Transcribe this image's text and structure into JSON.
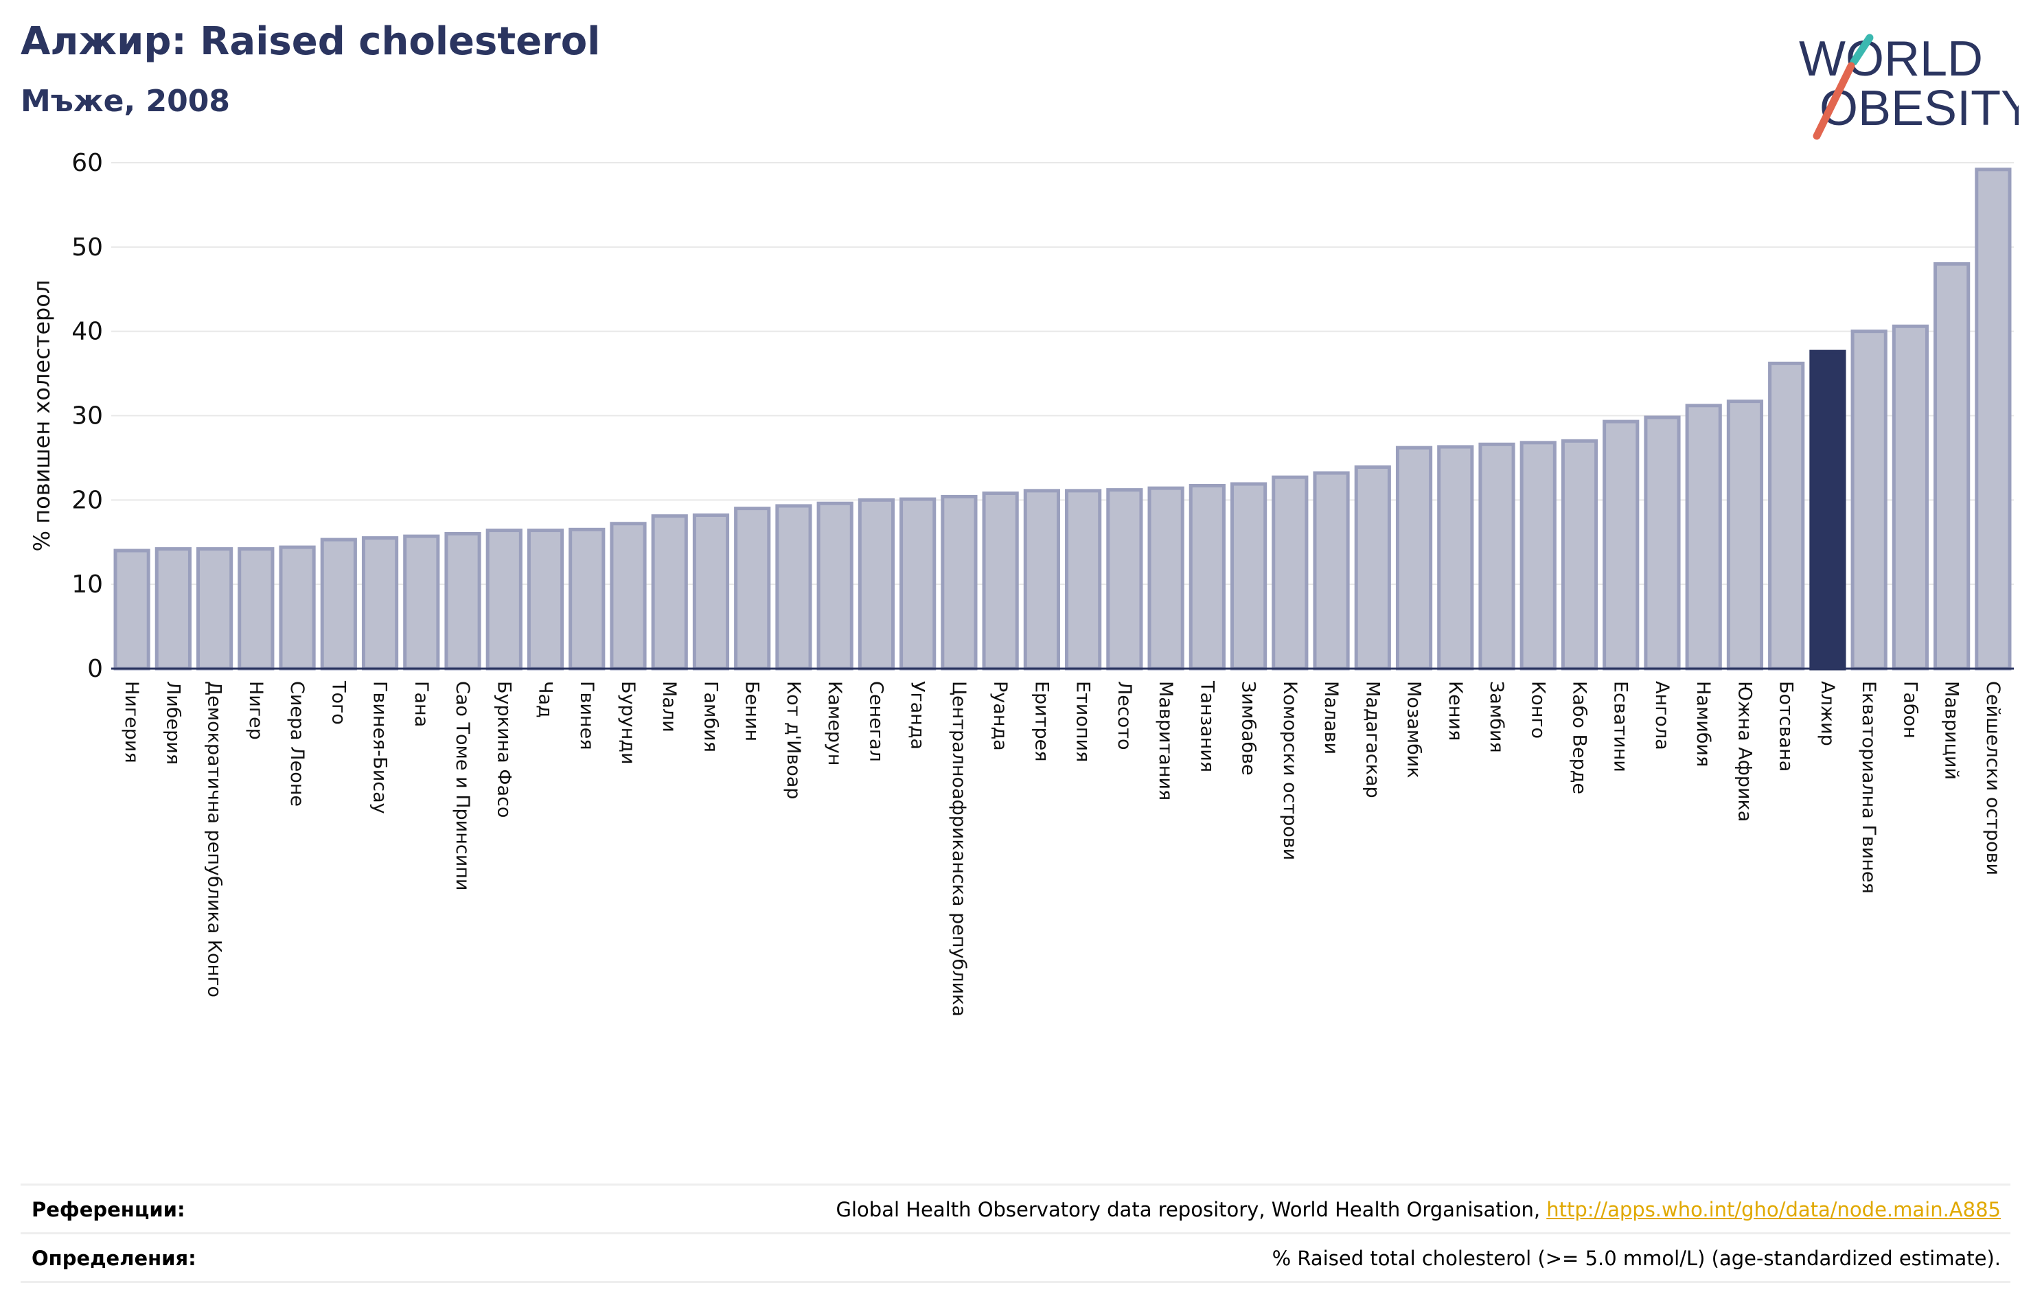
{
  "header": {
    "title": "Алжир: Raised cholesterol",
    "subtitle": "Мъже, 2008"
  },
  "logo": {
    "line1": "WORLD",
    "line2": "OBESITY"
  },
  "chart_data": {
    "type": "bar",
    "ylabel": "% повишен холестерол",
    "xlabel": "",
    "ylim": [
      0,
      60
    ],
    "yticks": [
      0,
      10,
      20,
      30,
      40,
      50,
      60
    ],
    "grid": true,
    "highlight": "Алжир",
    "categories": [
      "Нигерия",
      "Либерия",
      "Демократична република Конго",
      "Нигер",
      "Сиера Леоне",
      "Того",
      "Гвинея-Бисау",
      "Гана",
      "Сао Томе и Принсипи",
      "Буркина Фасо",
      "Чад",
      "Гвинея",
      "Бурунди",
      "Мали",
      "Гамбия",
      "Бенин",
      "Кот д'Ивоар",
      "Камерун",
      "Сенегал",
      "Уганда",
      "Централноафриканска република",
      "Руанда",
      "Еритрея",
      "Етиопия",
      "Лесото",
      "Мавритания",
      "Танзания",
      "Зимбабве",
      "Коморски острови",
      "Малави",
      "Мадагаскар",
      "Мозамбик",
      "Кения",
      "Замбия",
      "Конго",
      "Кабо Верде",
      "Есватини",
      "Ангола",
      "Намибия",
      "Южна Африка",
      "Ботсвана",
      "Алжир",
      "Екваториална Гвинея",
      "Габон",
      "Мавриций",
      "Сейшелски острови"
    ],
    "values": [
      14.0,
      14.2,
      14.2,
      14.2,
      14.4,
      15.3,
      15.5,
      15.7,
      16.0,
      16.4,
      16.4,
      16.5,
      17.2,
      18.1,
      18.2,
      19.0,
      19.3,
      19.6,
      20.0,
      20.1,
      20.4,
      20.8,
      21.1,
      21.1,
      21.2,
      21.4,
      21.7,
      21.9,
      22.7,
      23.2,
      23.9,
      26.2,
      26.3,
      26.6,
      26.8,
      27.0,
      29.3,
      29.8,
      31.2,
      31.7,
      36.2,
      37.6,
      40.0,
      40.6,
      48.0,
      59.2
    ],
    "colors": {
      "bar": "#bcbfcf",
      "bar_edge": "#9a9fbd",
      "highlight": "#2b3560",
      "grid": "#e8e8e8",
      "axis": "#2b3560"
    }
  },
  "footer": {
    "references_label": "Референции:",
    "references_text": "Global Health Observatory data repository, World Health Organisation, ",
    "references_link": "http://apps.who.int/gho/data/node.main.A885",
    "definitions_label": "Определения:",
    "definitions_text": "% Raised total cholesterol (>= 5.0 mmol/L) (age-standardized estimate)."
  }
}
